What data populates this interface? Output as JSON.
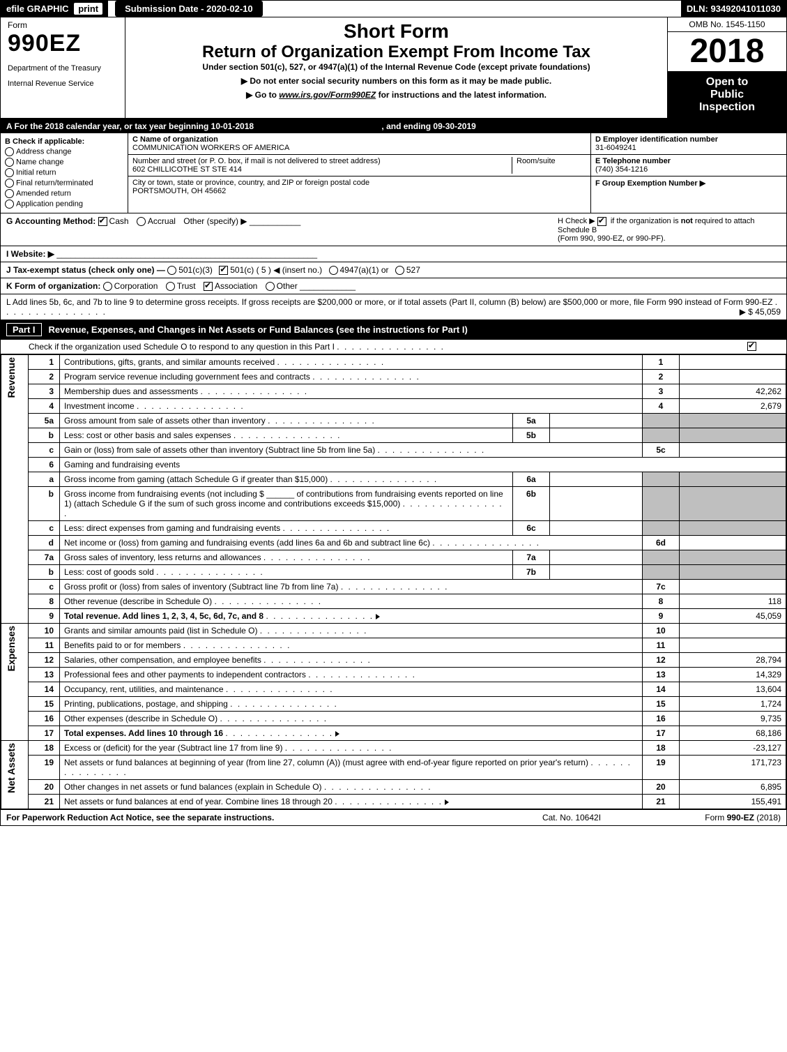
{
  "topbar": {
    "efile": "efile GRAPHIC",
    "print": "print",
    "submit_label": "Submission Date - 2020-02-10",
    "dln": "DLN: 93492041011030"
  },
  "header": {
    "form_label": "Form",
    "form_no": "990EZ",
    "dept1": "Department of the Treasury",
    "dept2": "Internal Revenue Service",
    "short": "Short Form",
    "return_title": "Return of Organization Exempt From Income Tax",
    "under": "Under section 501(c), 527, or 4947(a)(1) of the Internal Revenue Code (except private foundations)",
    "no_ssn": "▶ Do not enter social security numbers on this form as it may be made public.",
    "goto_pre": "▶ Go to ",
    "goto_link": "www.irs.gov/Form990EZ",
    "goto_post": " for instructions and the latest information.",
    "omb": "OMB No. 1545-1150",
    "year": "2018",
    "inspect1": "Open to",
    "inspect2": "Public",
    "inspect3": "Inspection"
  },
  "period": {
    "line_a": "A  For the 2018 calendar year, or tax year beginning 10-01-2018",
    "line_b": ", and ending 09-30-2019"
  },
  "box_b": {
    "title": "B  Check if applicable:",
    "opts": [
      "Address change",
      "Name change",
      "Initial return",
      "Final return/terminated",
      "Amended return",
      "Application pending"
    ]
  },
  "box_c": {
    "name_lbl": "C Name of organization",
    "name": "COMMUNICATION WORKERS OF AMERICA",
    "addr_lbl": "Number and street (or P. O. box, if mail is not delivered to street address)",
    "room_lbl": "Room/suite",
    "addr": "602 CHILLICOTHE ST STE 414",
    "city_lbl": "City or town, state or province, country, and ZIP or foreign postal code",
    "city": "PORTSMOUTH, OH  45662"
  },
  "box_d": {
    "ein_lbl": "D Employer identification number",
    "ein": "31-6049241",
    "tel_lbl": "E Telephone number",
    "tel": "(740) 354-1216",
    "grp_lbl": "F Group Exemption Number  ▶"
  },
  "g": {
    "label": "G Accounting Method:",
    "cash": "Cash",
    "accrual": "Accrual",
    "other": "Other (specify) ▶"
  },
  "h": {
    "text1": "H  Check ▶",
    "text2": "if the organization is not required to attach Schedule B",
    "text3": "(Form 990, 990-EZ, or 990-PF)."
  },
  "i": {
    "label": "I Website: ▶"
  },
  "j": {
    "label": "J Tax-exempt status (check only one) —",
    "o1": "501(c)(3)",
    "o2": "501(c) ( 5 ) ◀ (insert no.)",
    "o3": "4947(a)(1) or",
    "o4": "527"
  },
  "k": {
    "label": "K Form of organization:",
    "o1": "Corporation",
    "o2": "Trust",
    "o3": "Association",
    "o4": "Other"
  },
  "l": {
    "text": "L Add lines 5b, 6c, and 7b to line 9 to determine gross receipts. If gross receipts are $200,000 or more, or if total assets (Part II, column (B) below) are $500,000 or more, file Form 990 instead of Form 990-EZ",
    "amt": "▶ $ 45,059"
  },
  "part1": {
    "tag": "Part I",
    "title": "Revenue, Expenses, and Changes in Net Assets or Fund Balances (see the instructions for Part I)",
    "sub": "Check if the organization used Schedule O to respond to any question in this Part I"
  },
  "sections": {
    "revenue": "Revenue",
    "expenses": "Expenses",
    "netassets": "Net Assets"
  },
  "lines": [
    {
      "sec": "rev",
      "n": "1",
      "d": "Contributions, gifts, grants, and similar amounts received",
      "ln": "1",
      "amt": ""
    },
    {
      "sec": "rev",
      "n": "2",
      "d": "Program service revenue including government fees and contracts",
      "ln": "2",
      "amt": ""
    },
    {
      "sec": "rev",
      "n": "3",
      "d": "Membership dues and assessments",
      "ln": "3",
      "amt": "42,262"
    },
    {
      "sec": "rev",
      "n": "4",
      "d": "Investment income",
      "ln": "4",
      "amt": "2,679"
    },
    {
      "sec": "rev",
      "n": "5a",
      "d": "Gross amount from sale of assets other than inventory",
      "mini": "5a"
    },
    {
      "sec": "rev",
      "n": "b",
      "d": "Less: cost or other basis and sales expenses",
      "mini": "5b"
    },
    {
      "sec": "rev",
      "n": "c",
      "d": "Gain or (loss) from sale of assets other than inventory (Subtract line 5b from line 5a)",
      "ln": "5c",
      "amt": ""
    },
    {
      "sec": "rev",
      "n": "6",
      "d": "Gaming and fundraising events",
      "noboxes": true
    },
    {
      "sec": "rev",
      "n": "a",
      "d": "Gross income from gaming (attach Schedule G if greater than $15,000)",
      "mini": "6a"
    },
    {
      "sec": "rev",
      "n": "b",
      "d": "Gross income from fundraising events (not including $ ______ of contributions from fundraising events reported on line 1) (attach Schedule G if the sum of such gross income and contributions exceeds $15,000)",
      "mini": "6b"
    },
    {
      "sec": "rev",
      "n": "c",
      "d": "Less: direct expenses from gaming and fundraising events",
      "mini": "6c"
    },
    {
      "sec": "rev",
      "n": "d",
      "d": "Net income or (loss) from gaming and fundraising events (add lines 6a and 6b and subtract line 6c)",
      "ln": "6d",
      "amt": ""
    },
    {
      "sec": "rev",
      "n": "7a",
      "d": "Gross sales of inventory, less returns and allowances",
      "mini": "7a"
    },
    {
      "sec": "rev",
      "n": "b",
      "d": "Less: cost of goods sold",
      "mini": "7b"
    },
    {
      "sec": "rev",
      "n": "c",
      "d": "Gross profit or (loss) from sales of inventory (Subtract line 7b from line 7a)",
      "ln": "7c",
      "amt": ""
    },
    {
      "sec": "rev",
      "n": "8",
      "d": "Other revenue (describe in Schedule O)",
      "ln": "8",
      "amt": "118"
    },
    {
      "sec": "rev",
      "n": "9",
      "d": "Total revenue. Add lines 1, 2, 3, 4, 5c, 6d, 7c, and 8",
      "ln": "9",
      "amt": "45,059",
      "bold": true,
      "arrow": true
    },
    {
      "sec": "exp",
      "n": "10",
      "d": "Grants and similar amounts paid (list in Schedule O)",
      "ln": "10",
      "amt": ""
    },
    {
      "sec": "exp",
      "n": "11",
      "d": "Benefits paid to or for members",
      "ln": "11",
      "amt": ""
    },
    {
      "sec": "exp",
      "n": "12",
      "d": "Salaries, other compensation, and employee benefits",
      "ln": "12",
      "amt": "28,794"
    },
    {
      "sec": "exp",
      "n": "13",
      "d": "Professional fees and other payments to independent contractors",
      "ln": "13",
      "amt": "14,329"
    },
    {
      "sec": "exp",
      "n": "14",
      "d": "Occupancy, rent, utilities, and maintenance",
      "ln": "14",
      "amt": "13,604"
    },
    {
      "sec": "exp",
      "n": "15",
      "d": "Printing, publications, postage, and shipping",
      "ln": "15",
      "amt": "1,724"
    },
    {
      "sec": "exp",
      "n": "16",
      "d": "Other expenses (describe in Schedule O)",
      "ln": "16",
      "amt": "9,735"
    },
    {
      "sec": "exp",
      "n": "17",
      "d": "Total expenses. Add lines 10 through 16",
      "ln": "17",
      "amt": "68,186",
      "bold": true,
      "arrow": true
    },
    {
      "sec": "net",
      "n": "18",
      "d": "Excess or (deficit) for the year (Subtract line 17 from line 9)",
      "ln": "18",
      "amt": "-23,127"
    },
    {
      "sec": "net",
      "n": "19",
      "d": "Net assets or fund balances at beginning of year (from line 27, column (A)) (must agree with end-of-year figure reported on prior year's return)",
      "ln": "19",
      "amt": "171,723"
    },
    {
      "sec": "net",
      "n": "20",
      "d": "Other changes in net assets or fund balances (explain in Schedule O)",
      "ln": "20",
      "amt": "6,895"
    },
    {
      "sec": "net",
      "n": "21",
      "d": "Net assets or fund balances at end of year. Combine lines 18 through 20",
      "ln": "21",
      "amt": "155,491",
      "arrow": true
    }
  ],
  "footer": {
    "l": "For Paperwork Reduction Act Notice, see the separate instructions.",
    "c": "Cat. No. 10642I",
    "r": "Form 990-EZ (2018)"
  }
}
